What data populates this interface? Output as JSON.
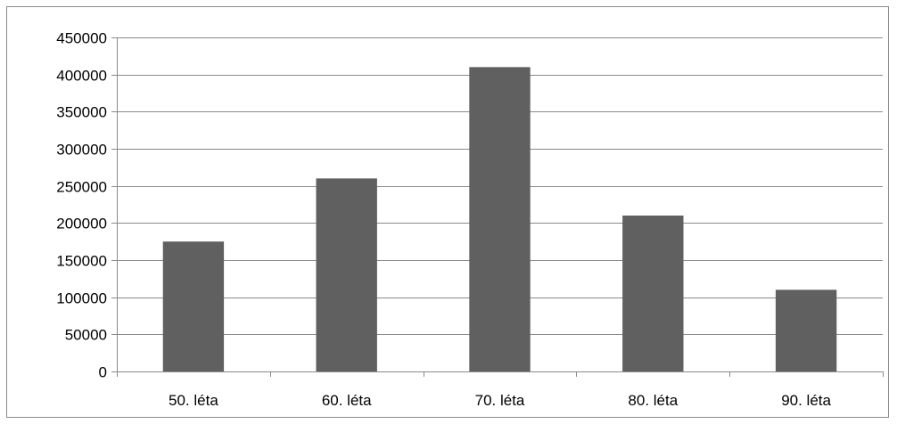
{
  "colors": {
    "bar": "#606060",
    "gridline": "#8a8a8a",
    "axis": "#8a8a8a",
    "frame": "#8a8a8a",
    "background": "#ffffff",
    "text": "#000000"
  },
  "chart_data": {
    "type": "bar",
    "title": "",
    "xlabel": "",
    "ylabel": "",
    "categories": [
      "50. léta",
      "60. léta",
      "70. léta",
      "80. léta",
      "90. léta"
    ],
    "values": [
      175000,
      260000,
      410000,
      210000,
      110000
    ],
    "ylim": [
      0,
      450000
    ],
    "y_ticks": [
      0,
      50000,
      100000,
      150000,
      200000,
      250000,
      300000,
      350000,
      400000,
      450000
    ],
    "y_tick_labels": [
      "0",
      "50000",
      "100000",
      "150000",
      "200000",
      "250000",
      "300000",
      "350000",
      "400000",
      "450000"
    ],
    "grid": true,
    "legend": "none"
  }
}
